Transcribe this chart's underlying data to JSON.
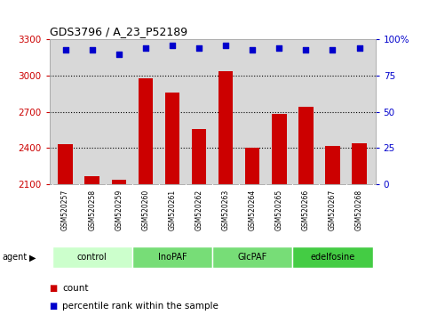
{
  "title": "GDS3796 / A_23_P52189",
  "samples": [
    "GSM520257",
    "GSM520258",
    "GSM520259",
    "GSM520260",
    "GSM520261",
    "GSM520262",
    "GSM520263",
    "GSM520264",
    "GSM520265",
    "GSM520266",
    "GSM520267",
    "GSM520268"
  ],
  "counts": [
    2430,
    2165,
    2140,
    2980,
    2860,
    2560,
    3040,
    2405,
    2680,
    2740,
    2420,
    2440
  ],
  "percentile_ranks": [
    93,
    93,
    90,
    94,
    96,
    94,
    96,
    93,
    94,
    93,
    93,
    94
  ],
  "groups": [
    {
      "label": "control",
      "color": "#ccffcc",
      "start": 0,
      "end": 3
    },
    {
      "label": "InoPAF",
      "color": "#77dd77",
      "start": 3,
      "end": 6
    },
    {
      "label": "GlcPAF",
      "color": "#77dd77",
      "start": 6,
      "end": 9
    },
    {
      "label": "edelfosine",
      "color": "#44cc44",
      "start": 9,
      "end": 12
    }
  ],
  "ylim_left": [
    2100,
    3300
  ],
  "yticks_left": [
    2100,
    2400,
    2700,
    3000,
    3300
  ],
  "ylim_right": [
    0,
    100
  ],
  "yticks_right": [
    0,
    25,
    50,
    75,
    100
  ],
  "bar_color": "#cc0000",
  "dot_color": "#0000cc",
  "bar_width": 0.55,
  "xlabel_color": "#cc0000",
  "ylabel_right_color": "#0000cc",
  "grid_color": "#000000",
  "bg_color": "#ffffff",
  "plot_bg_color": "#d8d8d8"
}
